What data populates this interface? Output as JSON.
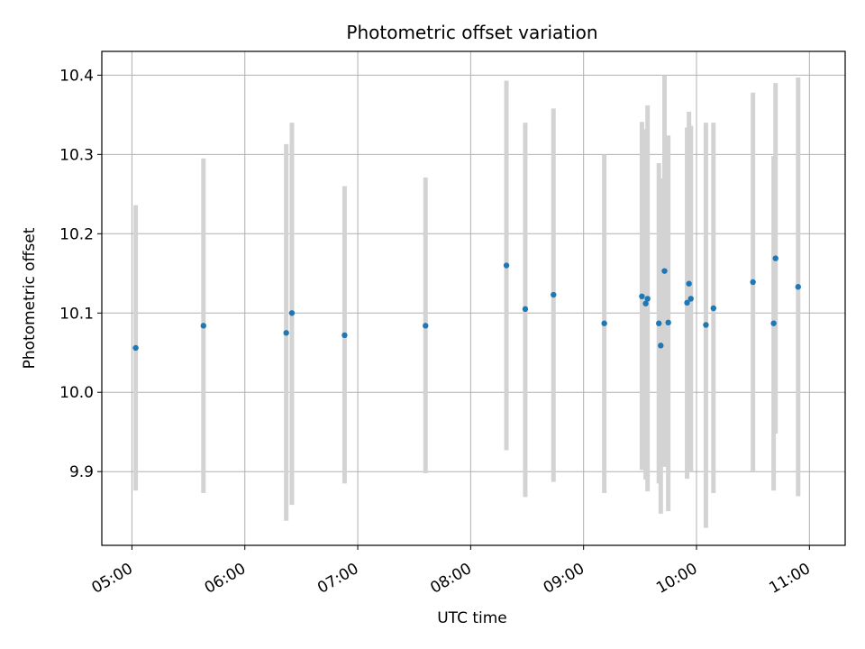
{
  "chart_data": {
    "type": "scatter",
    "title": "Photometric offset variation",
    "xlabel": "UTC time",
    "ylabel": "Photometric offset",
    "x_axis_kind": "time",
    "xlim": [
      "04:44",
      "11:19"
    ],
    "ylim": [
      9.807,
      10.43
    ],
    "xticks": [
      "05:00",
      "06:00",
      "07:00",
      "08:00",
      "09:00",
      "10:00",
      "11:00"
    ],
    "yticks": [
      "9.9",
      "10.0",
      "10.1",
      "10.2",
      "10.3",
      "10.4"
    ],
    "grid": true,
    "marker_color": "#1f77b4",
    "errorbar_color": "#d3d3d3",
    "series": [
      {
        "points": [
          {
            "x": "05:02",
            "y": 10.056,
            "ylow": 9.876,
            "yhigh": 10.236
          },
          {
            "x": "05:38",
            "y": 10.084,
            "ylow": 9.873,
            "yhigh": 10.295
          },
          {
            "x": "06:22",
            "y": 10.075,
            "ylow": 9.838,
            "yhigh": 10.313
          },
          {
            "x": "06:25",
            "y": 10.1,
            "ylow": 9.858,
            "yhigh": 10.34
          },
          {
            "x": "06:53",
            "y": 10.072,
            "ylow": 9.885,
            "yhigh": 10.26
          },
          {
            "x": "07:36",
            "y": 10.084,
            "ylow": 9.898,
            "yhigh": 10.271
          },
          {
            "x": "08:19",
            "y": 10.16,
            "ylow": 9.927,
            "yhigh": 10.393
          },
          {
            "x": "08:29",
            "y": 10.105,
            "ylow": 9.868,
            "yhigh": 10.34
          },
          {
            "x": "08:44",
            "y": 10.123,
            "ylow": 9.887,
            "yhigh": 10.358
          },
          {
            "x": "09:11",
            "y": 10.087,
            "ylow": 9.873,
            "yhigh": 10.3
          },
          {
            "x": "09:31",
            "y": 10.121,
            "ylow": 9.902,
            "yhigh": 10.341
          },
          {
            "x": "09:33",
            "y": 10.112,
            "ylow": 9.89,
            "yhigh": 10.332
          },
          {
            "x": "09:34",
            "y": 10.118,
            "ylow": 9.875,
            "yhigh": 10.362
          },
          {
            "x": "09:40",
            "y": 10.087,
            "ylow": 9.885,
            "yhigh": 10.289
          },
          {
            "x": "09:41",
            "y": 10.059,
            "ylow": 9.847,
            "yhigh": 10.27
          },
          {
            "x": "09:43",
            "y": 10.153,
            "ylow": 9.906,
            "yhigh": 10.4
          },
          {
            "x": "09:45",
            "y": 10.088,
            "ylow": 9.85,
            "yhigh": 10.324
          },
          {
            "x": "09:55",
            "y": 10.113,
            "ylow": 9.891,
            "yhigh": 10.334
          },
          {
            "x": "09:56",
            "y": 10.137,
            "ylow": 9.92,
            "yhigh": 10.354
          },
          {
            "x": "09:57",
            "y": 10.118,
            "ylow": 9.9,
            "yhigh": 10.336
          },
          {
            "x": "10:05",
            "y": 10.085,
            "ylow": 9.829,
            "yhigh": 10.34
          },
          {
            "x": "10:09",
            "y": 10.106,
            "ylow": 9.873,
            "yhigh": 10.34
          },
          {
            "x": "10:30",
            "y": 10.139,
            "ylow": 9.901,
            "yhigh": 10.378
          },
          {
            "x": "10:41",
            "y": 10.087,
            "ylow": 9.876,
            "yhigh": 10.298
          },
          {
            "x": "10:42",
            "y": 10.169,
            "ylow": 9.948,
            "yhigh": 10.39
          },
          {
            "x": "10:54",
            "y": 10.133,
            "ylow": 9.869,
            "yhigh": 10.397
          }
        ]
      }
    ]
  }
}
